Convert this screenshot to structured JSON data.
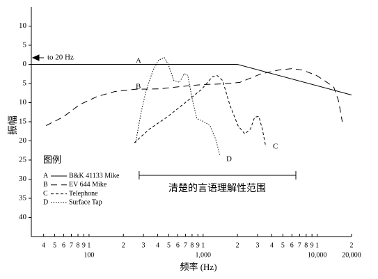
{
  "chart_data": {
    "type": "line",
    "y_label": "振幅",
    "x_label": "频率 (Hz)",
    "x_log": true,
    "xlim": [
      31.2,
      20000
    ],
    "ylim": [
      -45,
      15
    ],
    "yticks": [
      10,
      5,
      0,
      {
        "value": -5,
        "label": "5"
      },
      {
        "value": -10,
        "label": "10"
      },
      {
        "value": -15,
        "label": "15"
      },
      {
        "value": -20,
        "label": "20"
      },
      {
        "value": -25,
        "label": "25"
      },
      {
        "value": -30,
        "label": "30"
      },
      {
        "value": -35,
        "label": "35"
      },
      {
        "value": -40,
        "label": "40"
      }
    ],
    "xticks": [
      {
        "value": 40,
        "label": "4"
      },
      {
        "value": 50,
        "label": "5"
      },
      {
        "value": 60,
        "label": "6"
      },
      {
        "value": 70,
        "label": "7"
      },
      {
        "value": 80,
        "label": "8"
      },
      {
        "value": 90,
        "label": "9"
      },
      {
        "value": 100,
        "label": "1"
      },
      {
        "value": 200,
        "label": "2"
      },
      {
        "value": 300,
        "label": "3"
      },
      {
        "value": 400,
        "label": "4"
      },
      {
        "value": 500,
        "label": "5"
      },
      {
        "value": 600,
        "label": "6"
      },
      {
        "value": 700,
        "label": "7"
      },
      {
        "value": 800,
        "label": "8"
      },
      {
        "value": 900,
        "label": "9"
      },
      {
        "value": 1000,
        "label": "1"
      },
      {
        "value": 2000,
        "label": "2"
      },
      {
        "value": 3000,
        "label": "3"
      },
      {
        "value": 4000,
        "label": "4"
      },
      {
        "value": 5000,
        "label": "5"
      },
      {
        "value": 6000,
        "label": "6"
      },
      {
        "value": 7000,
        "label": "7"
      },
      {
        "value": 8000,
        "label": "8"
      },
      {
        "value": 9000,
        "label": "9"
      },
      {
        "value": 10000,
        "label": "1"
      },
      {
        "value": 20000,
        "label": "2"
      }
    ],
    "x_major_labels": [
      {
        "value": 100,
        "label": "100"
      },
      {
        "value": 1000,
        "label": "1,000"
      },
      {
        "value": 10000,
        "label": "10,000"
      },
      {
        "value": 20000,
        "label": "20,000"
      }
    ],
    "left_note": "to 20 Hz",
    "legend_title": "图例",
    "speech_range": {
      "label": "清楚的言语理解性范围",
      "x": [
        275,
        6500
      ]
    },
    "series": [
      {
        "name": "A",
        "label": "B&K 41133 Mike",
        "color": "#000000",
        "dash": "none",
        "x": [
          31.2,
          2000,
          20000
        ],
        "values": [
          0,
          0,
          -8
        ]
      },
      {
        "name": "B",
        "label": "EV 644 Mike",
        "color": "#000000",
        "dash": "9,6",
        "x": [
          42,
          59,
          83,
          118,
          168,
          256,
          419,
          638,
          972,
          1480,
          2100,
          3200,
          4560,
          6030,
          7450,
          9860,
          12200,
          14000,
          15400,
          16600
        ],
        "values": [
          -16,
          -13.8,
          -10.5,
          -8.4,
          -7.1,
          -6.5,
          -6.4,
          -5.8,
          -5.3,
          -5.1,
          -4.7,
          -2.5,
          -1.5,
          -1.1,
          -1.5,
          -2.9,
          -4.7,
          -6,
          -9.6,
          -15
        ]
      },
      {
        "name": "C",
        "label": "Telephone",
        "color": "#000000",
        "dash": "4,3",
        "x": [
          249,
          339,
          482,
          684,
          972,
          1200,
          1325,
          1480,
          1710,
          2020,
          2320,
          2600,
          2830,
          3080,
          3300,
          3540
        ],
        "values": [
          -20.5,
          -16.9,
          -13.8,
          -10.2,
          -6.5,
          -3.3,
          -2.9,
          -4.2,
          -10.5,
          -16,
          -18.2,
          -16.9,
          -13.8,
          -13.6,
          -16.9,
          -21.5
        ]
      },
      {
        "name": "D",
        "label": "Surface Tap",
        "color": "#000000",
        "dash": "1.5,2",
        "x": [
          256,
          287,
          316,
          364,
          407,
          456,
          495,
          554,
          620,
          684,
          734,
          798,
          881,
          1000,
          1150,
          1290,
          1400
        ],
        "values": [
          -20.5,
          -12.4,
          -6.9,
          -1.5,
          1.1,
          1.8,
          0,
          -4.2,
          -4.7,
          -2.4,
          -2.9,
          -8.7,
          -14.2,
          -14.9,
          -16,
          -19.6,
          -23.6
        ]
      }
    ]
  }
}
